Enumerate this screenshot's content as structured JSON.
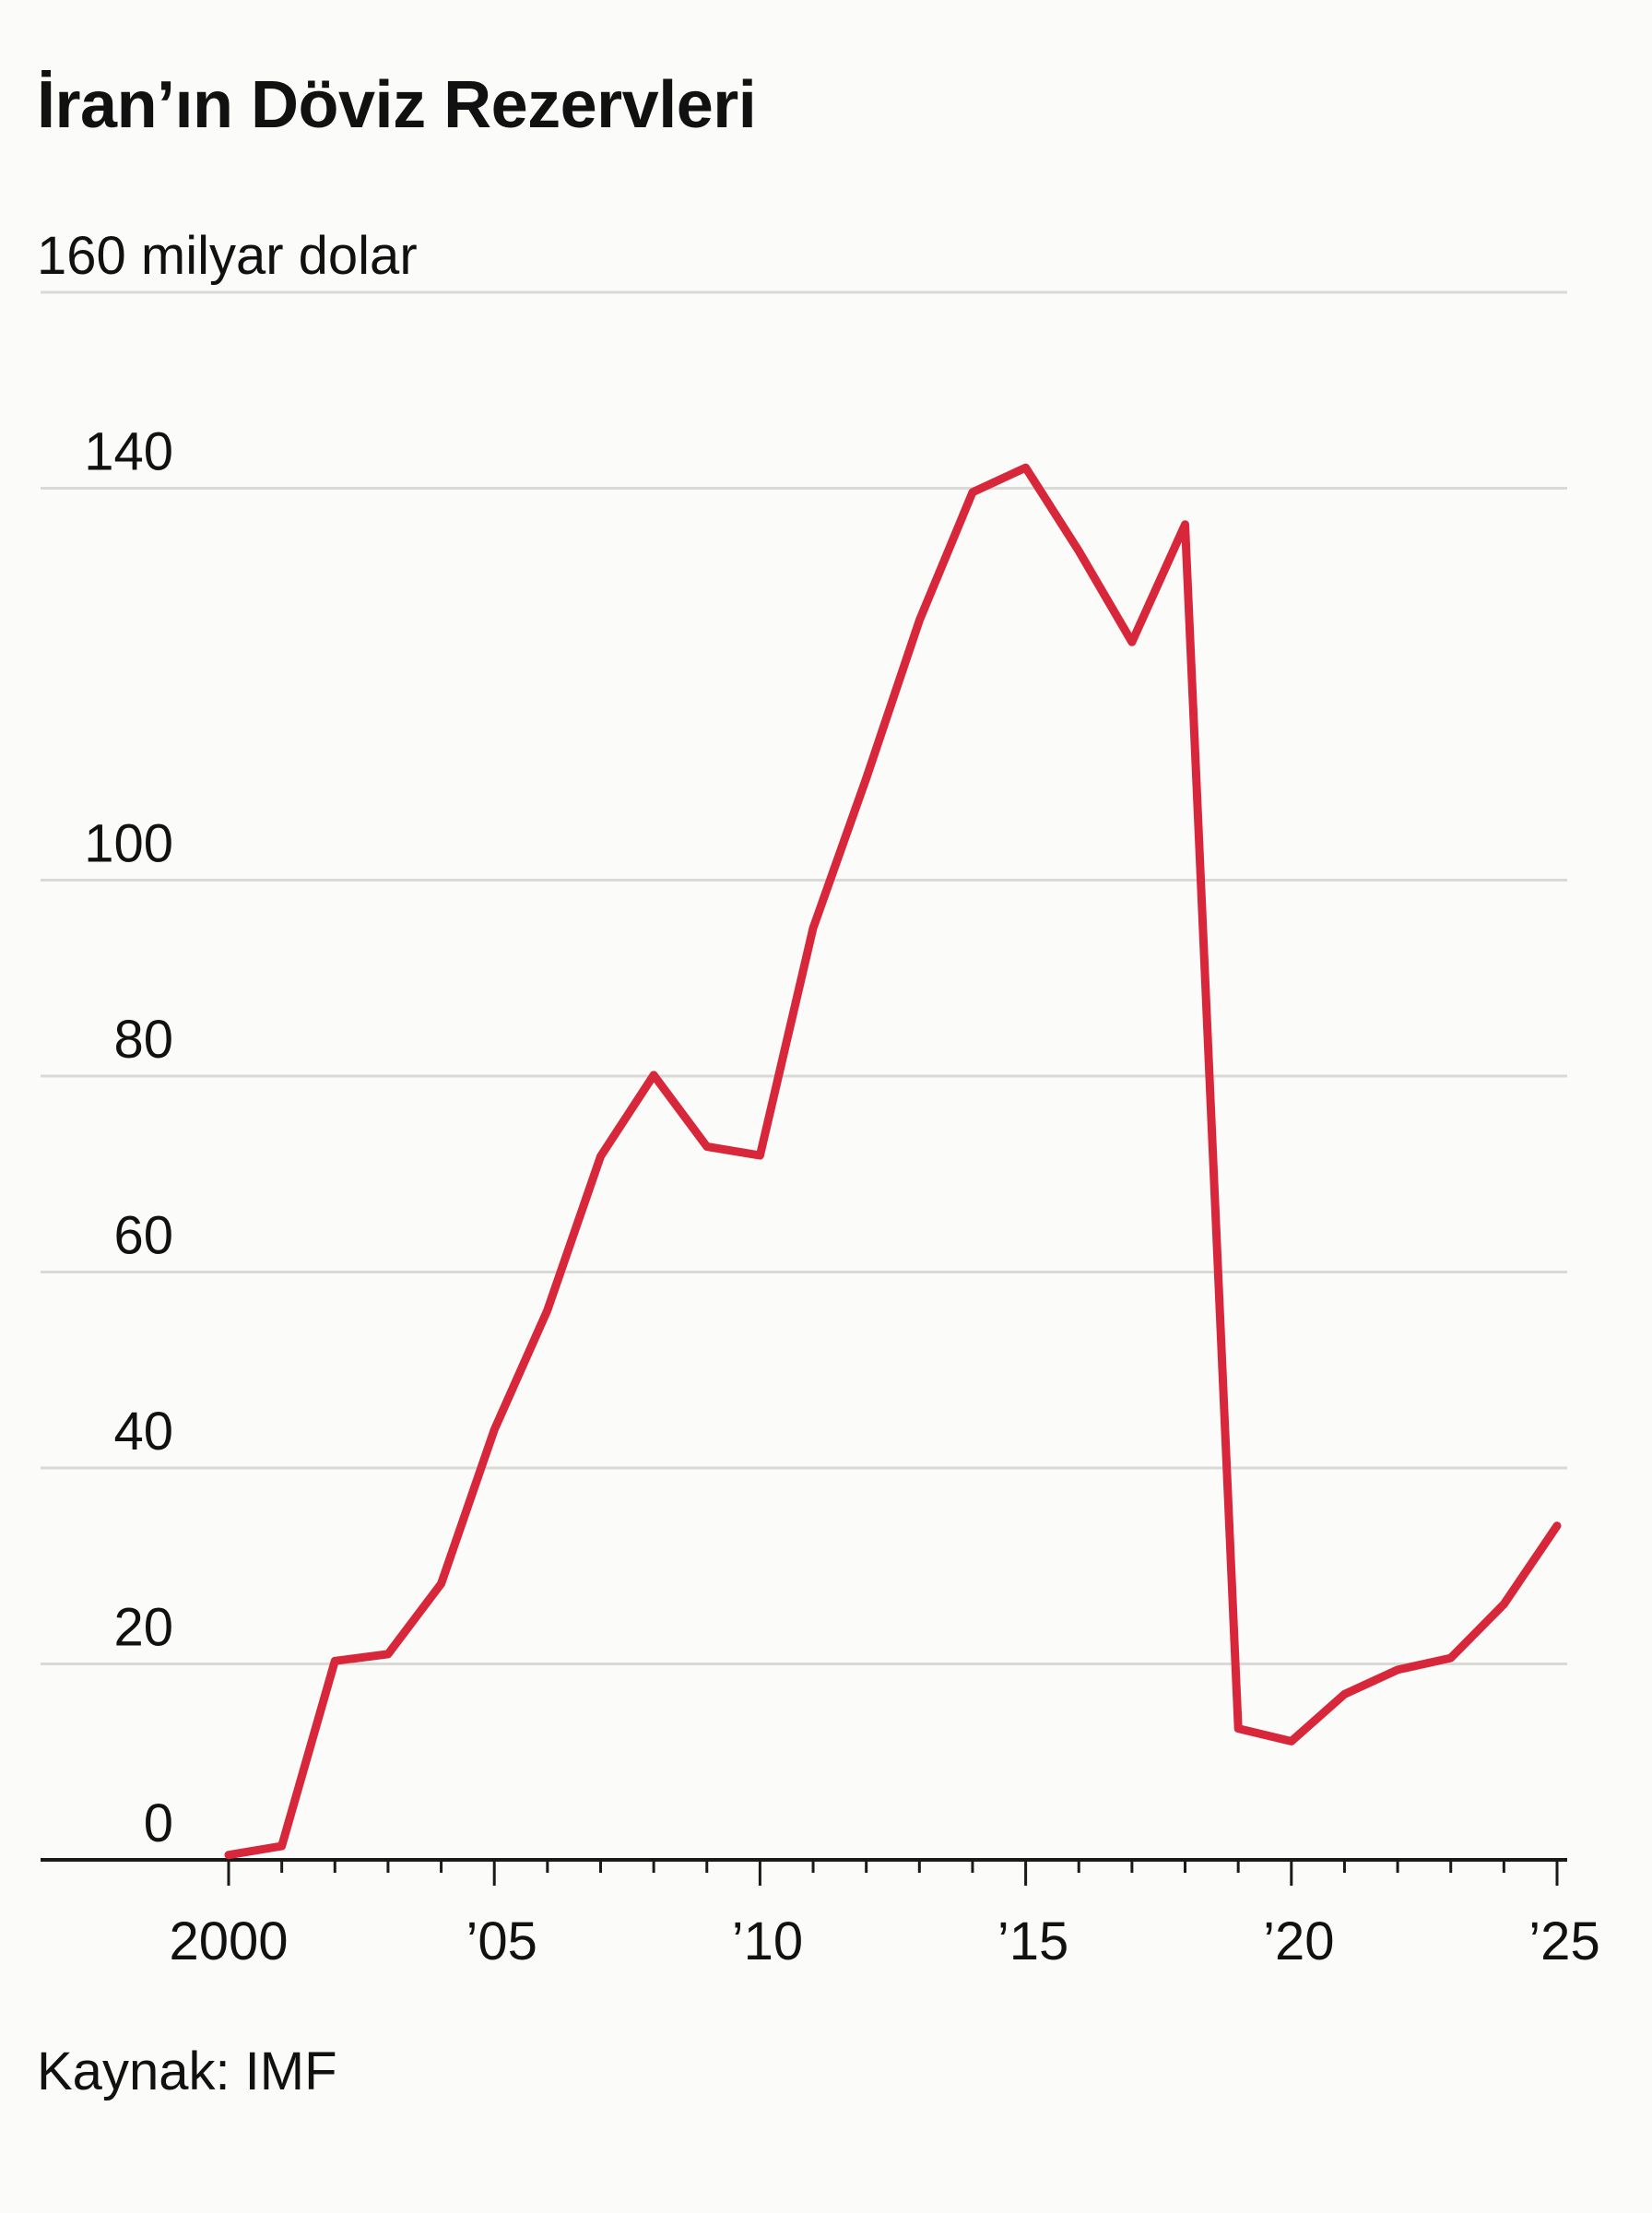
{
  "title": "İran’ın Döviz Rezervleri",
  "source": "Kaynak: IMF",
  "colors": {
    "line": "#d8263a",
    "background": "#fbfbf9",
    "grid": "#d9d9d6",
    "axis": "#1a1a1a"
  },
  "chart_data": {
    "type": "line",
    "title": "İran’ın Döviz Rezervleri",
    "ylabel": "",
    "unit_label": "160 milyar dolar",
    "ylim": [
      0,
      160
    ],
    "xlim": [
      2000,
      2025
    ],
    "grid": true,
    "y_ticks": [
      {
        "value": 0,
        "label": "0"
      },
      {
        "value": 20,
        "label": "20"
      },
      {
        "value": 40,
        "label": "40"
      },
      {
        "value": 60,
        "label": "60"
      },
      {
        "value": 80,
        "label": "80"
      },
      {
        "value": 100,
        "label": "100"
      },
      {
        "value": 140,
        "label": "140"
      },
      {
        "value": 160,
        "label": "160 milyar dolar"
      }
    ],
    "y_gridlines": [
      20,
      40,
      60,
      80,
      100,
      140,
      160
    ],
    "x_ticks": [
      {
        "value": 2000,
        "label": "2000"
      },
      {
        "value": 2005,
        "label": "’05"
      },
      {
        "value": 2010,
        "label": "’10"
      },
      {
        "value": 2015,
        "label": "’15"
      },
      {
        "value": 2020,
        "label": "’20"
      },
      {
        "value": 2025,
        "label": "’25"
      }
    ],
    "x_minor_ticks": [
      2001,
      2002,
      2003,
      2004,
      2006,
      2007,
      2008,
      2009,
      2011,
      2012,
      2013,
      2014,
      2016,
      2017,
      2018,
      2019,
      2021,
      2022,
      2023,
      2024
    ],
    "series": [
      {
        "color": "#d8263a",
        "points": [
          [
            2000,
            0.5
          ],
          [
            2001,
            1.4
          ],
          [
            2002,
            20.3
          ],
          [
            2003,
            21.0
          ],
          [
            2004,
            28.2
          ],
          [
            2005,
            43.9
          ],
          [
            2006,
            56.1
          ],
          [
            2007,
            71.8
          ],
          [
            2008,
            80.1
          ],
          [
            2009,
            72.8
          ],
          [
            2010,
            71.9
          ],
          [
            2011,
            95.1
          ],
          [
            2012,
            110.4
          ],
          [
            2013,
            126.5
          ],
          [
            2014,
            139.6
          ],
          [
            2015,
            142.1
          ],
          [
            2016,
            133.6
          ],
          [
            2017,
            124.3
          ],
          [
            2018,
            136.3
          ],
          [
            2019,
            13.4
          ],
          [
            2020,
            12.1
          ],
          [
            2021,
            16.9
          ],
          [
            2022,
            19.4
          ],
          [
            2023,
            20.6
          ],
          [
            2024,
            26.1
          ],
          [
            2025,
            34.1
          ]
        ]
      }
    ]
  }
}
